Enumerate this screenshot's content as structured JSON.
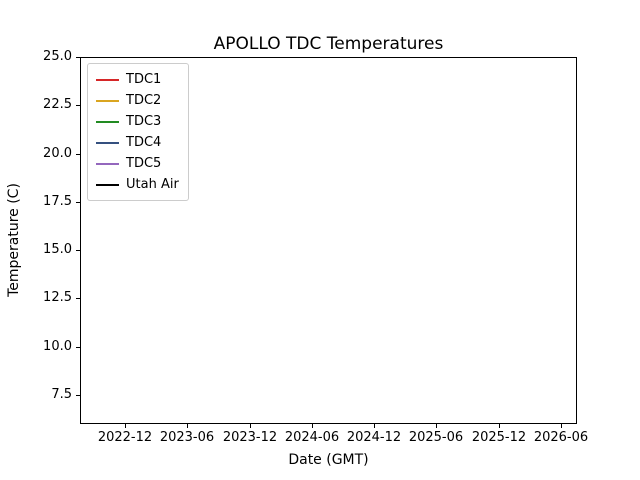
{
  "chart_data": {
    "type": "line",
    "title": "APOLLO TDC Temperatures",
    "xlabel": "Date (GMT)",
    "ylabel": "Temperature (C)",
    "x_tick_labels": [
      "2022-12",
      "2023-06",
      "2023-12",
      "2024-06",
      "2024-12",
      "2025-06",
      "2025-12",
      "2026-06"
    ],
    "y_tick_labels": [
      "25.0",
      "22.5",
      "20.0",
      "17.5",
      "15.0",
      "12.5",
      "10.0",
      "7.5"
    ],
    "ylim": [
      6.0,
      25.0
    ],
    "grid": false,
    "legend_position": "upper left",
    "series": [
      {
        "name": "TDC1",
        "color": "#d62728",
        "values": []
      },
      {
        "name": "TDC2",
        "color": "#daa520",
        "values": []
      },
      {
        "name": "TDC3",
        "color": "#228b22",
        "values": []
      },
      {
        "name": "TDC4",
        "color": "#35507f",
        "values": []
      },
      {
        "name": "TDC5",
        "color": "#9467bd",
        "values": []
      },
      {
        "name": "Utah Air",
        "color": "#000000",
        "values": []
      }
    ]
  }
}
